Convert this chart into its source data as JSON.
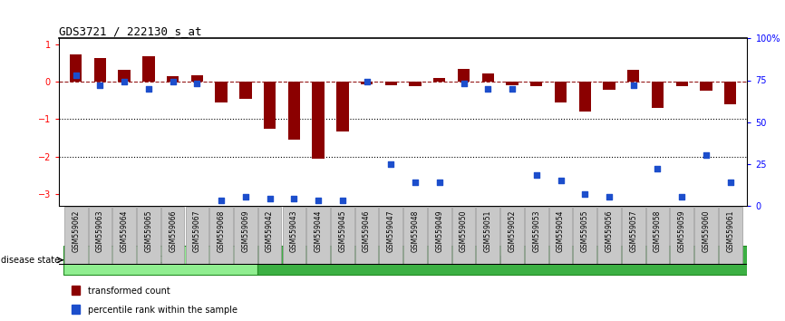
{
  "title": "GDS3721 / 222130_s_at",
  "samples": [
    "GSM559062",
    "GSM559063",
    "GSM559064",
    "GSM559065",
    "GSM559066",
    "GSM559067",
    "GSM559068",
    "GSM559069",
    "GSM559042",
    "GSM559043",
    "GSM559044",
    "GSM559045",
    "GSM559046",
    "GSM559047",
    "GSM559048",
    "GSM559049",
    "GSM559050",
    "GSM559051",
    "GSM559052",
    "GSM559053",
    "GSM559054",
    "GSM559055",
    "GSM559056",
    "GSM559057",
    "GSM559058",
    "GSM559059",
    "GSM559060",
    "GSM559061"
  ],
  "transformed_count": [
    0.72,
    0.62,
    0.32,
    0.68,
    0.15,
    0.18,
    -0.55,
    -0.45,
    -1.25,
    -1.55,
    -2.05,
    -1.32,
    -0.08,
    -0.1,
    -0.12,
    0.1,
    0.35,
    0.22,
    -0.1,
    -0.12,
    -0.55,
    -0.8,
    -0.22,
    0.32,
    -0.7,
    -0.12,
    -0.25,
    -0.6
  ],
  "percentile_rank": [
    78,
    72,
    74,
    70,
    74,
    73,
    3,
    5,
    4,
    4,
    3,
    3,
    74,
    25,
    14,
    14,
    73,
    70,
    70,
    18,
    15,
    7,
    5,
    72,
    22,
    5,
    30,
    14
  ],
  "pCR_count": 8,
  "pPR_count": 20,
  "bar_color": "#8B0000",
  "dot_color": "#1C4ECC",
  "pCR_color": "#90EE90",
  "pPR_color": "#3CB043",
  "yticks_left": [
    1,
    0,
    -1,
    -2,
    -3
  ],
  "yticks_right": [
    100,
    75,
    50,
    25,
    0
  ],
  "ylim_left": [
    -3.3,
    1.15
  ],
  "ylim_right": [
    0,
    100
  ],
  "bar_width": 0.5,
  "dot_size": 22,
  "bg_gray": "#C8C8C8",
  "bg_gray_border": "#999999"
}
